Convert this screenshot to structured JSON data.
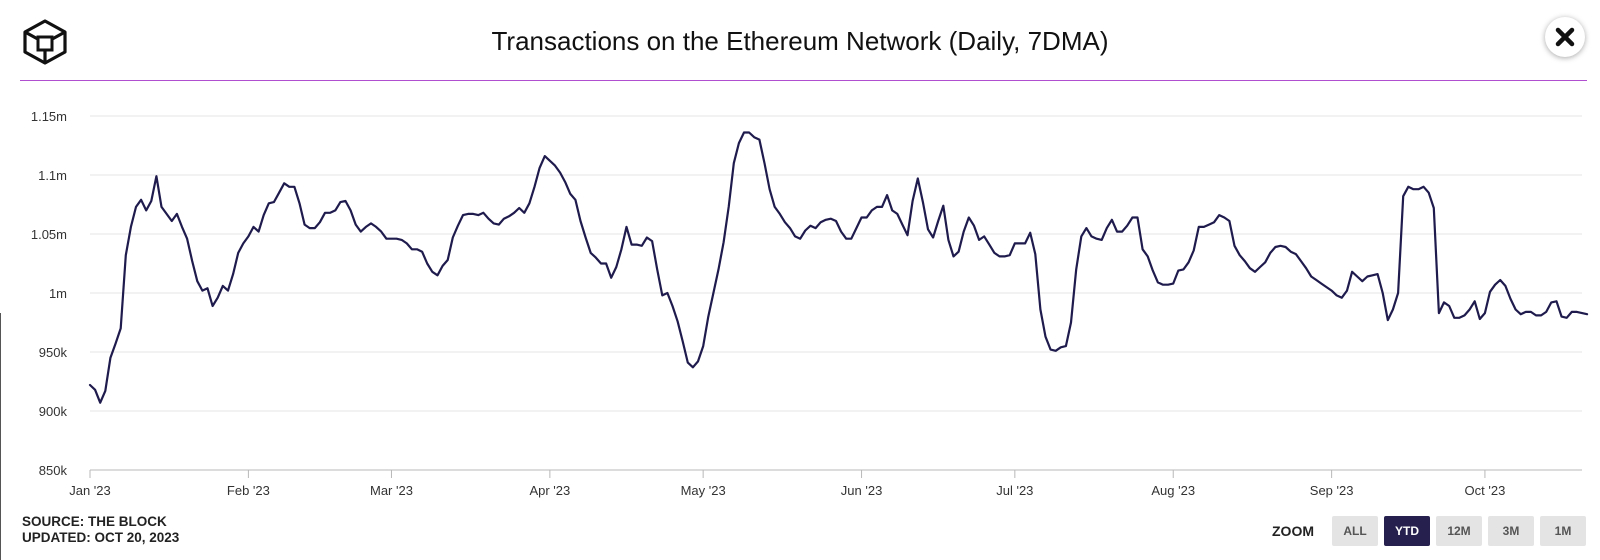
{
  "header": {
    "title": "Transactions on the Ethereum Network (Daily, 7DMA)"
  },
  "footer": {
    "source": "SOURCE: THE BLOCK",
    "updated": "UPDATED: OCT 20, 2023"
  },
  "zoom": {
    "label": "ZOOM",
    "options": [
      "ALL",
      "YTD",
      "12M",
      "3M",
      "1M"
    ],
    "selected": "YTD"
  },
  "colors": {
    "line": "#1f1b4d",
    "divider": "#b14fd1",
    "grid": "#e6e6e6",
    "active_zoom": "#25204e"
  },
  "chart_data": {
    "type": "line",
    "title": "Transactions on the Ethereum Network (Daily, 7DMA)",
    "xlabel": "",
    "ylabel": "",
    "x_range": [
      "2023-01-01",
      "2023-10-20"
    ],
    "ylim": [
      850000,
      1150000
    ],
    "y_ticks": [
      850000,
      900000,
      950000,
      1000000,
      1050000,
      1100000,
      1150000
    ],
    "y_tick_labels": [
      "850k",
      "900k",
      "950k",
      "1m",
      "1.05m",
      "1.1m",
      "1.15m"
    ],
    "x_ticks": [
      "2023-01-01",
      "2023-02-01",
      "2023-03-01",
      "2023-04-01",
      "2023-05-01",
      "2023-06-01",
      "2023-07-01",
      "2023-08-01",
      "2023-09-01",
      "2023-10-01"
    ],
    "x_tick_labels": [
      "Jan '23",
      "Feb '23",
      "Mar '23",
      "Apr '23",
      "May '23",
      "Jun '23",
      "Jul '23",
      "Aug '23",
      "Sep '23",
      "Oct '23"
    ],
    "grid": true,
    "series": [
      {
        "name": "Transactions (7DMA)",
        "start_date": "2023-01-01",
        "step": "1 day",
        "values": [
          922000,
          918000,
          907000,
          917000,
          945000,
          957000,
          970000,
          1032000,
          1056000,
          1073000,
          1079000,
          1070000,
          1078000,
          1099000,
          1073000,
          1067000,
          1061000,
          1067000,
          1056000,
          1046000,
          1027000,
          1010000,
          1002000,
          1004000,
          989000,
          996000,
          1006000,
          1002000,
          1016000,
          1034000,
          1042000,
          1048000,
          1056000,
          1052000,
          1066000,
          1076000,
          1077000,
          1085000,
          1093000,
          1090000,
          1090000,
          1076000,
          1058000,
          1055000,
          1055000,
          1060000,
          1068000,
          1068000,
          1070000,
          1077000,
          1078000,
          1070000,
          1058000,
          1052000,
          1056000,
          1059000,
          1056000,
          1052000,
          1046000,
          1046000,
          1046000,
          1045000,
          1042000,
          1037000,
          1037000,
          1035000,
          1025000,
          1018000,
          1015000,
          1023000,
          1028000,
          1047000,
          1057000,
          1066000,
          1067000,
          1067000,
          1066000,
          1068000,
          1063000,
          1059000,
          1058000,
          1063000,
          1065000,
          1068000,
          1072000,
          1068000,
          1076000,
          1090000,
          1106000,
          1116000,
          1112000,
          1108000,
          1102000,
          1094000,
          1084000,
          1079000,
          1061000,
          1047000,
          1034000,
          1030000,
          1025000,
          1025000,
          1013000,
          1022000,
          1037000,
          1056000,
          1041000,
          1041000,
          1040000,
          1047000,
          1044000,
          1020000,
          998000,
          1000000,
          989000,
          976000,
          959000,
          941000,
          937000,
          942000,
          955000,
          980000,
          1000000,
          1020000,
          1043000,
          1073000,
          1110000,
          1127000,
          1136000,
          1136000,
          1132000,
          1130000,
          1110000,
          1088000,
          1073000,
          1067000,
          1060000,
          1055000,
          1048000,
          1046000,
          1053000,
          1057000,
          1055000,
          1060000,
          1062000,
          1063000,
          1061000,
          1052000,
          1046000,
          1046000,
          1055000,
          1064000,
          1064000,
          1070000,
          1073000,
          1073000,
          1083000,
          1070000,
          1067000,
          1058000,
          1049000,
          1078000,
          1097000,
          1077000,
          1054000,
          1047000,
          1061000,
          1074000,
          1045000,
          1031000,
          1035000,
          1052000,
          1064000,
          1057000,
          1045000,
          1048000,
          1041000,
          1034000,
          1031000,
          1031000,
          1032000,
          1042000,
          1042000,
          1042000,
          1051000,
          1033000,
          986000,
          963000,
          952000,
          951000,
          954000,
          955000,
          975000,
          1020000,
          1048000,
          1055000,
          1048000,
          1046000,
          1045000,
          1055000,
          1062000,
          1052000,
          1052000,
          1057000,
          1064000,
          1064000,
          1037000,
          1031000,
          1019000,
          1009000,
          1007000,
          1007000,
          1008000,
          1019000,
          1020000,
          1026000,
          1036000,
          1056000,
          1056000,
          1058000,
          1060000,
          1066000,
          1064000,
          1061000,
          1040000,
          1032000,
          1027000,
          1021000,
          1018000,
          1022000,
          1026000,
          1034000,
          1039000,
          1040000,
          1039000,
          1035000,
          1033000,
          1027000,
          1021000,
          1014000,
          1011000,
          1008000,
          1005000,
          1002000,
          998000,
          996000,
          1002000,
          1018000,
          1014000,
          1010000,
          1014000,
          1015000,
          1016000,
          1000000,
          977000,
          986000,
          1000000,
          1082000,
          1090000,
          1088000,
          1088000,
          1090000,
          1085000,
          1072000,
          983000,
          992000,
          989000,
          979000,
          979000,
          981000,
          986000,
          993000,
          978000,
          983000,
          1001000,
          1007000,
          1011000,
          1006000,
          995000,
          986000,
          982000,
          984000,
          984000,
          981000,
          981000,
          984000,
          992000,
          993000,
          980000,
          979000,
          984000,
          984000,
          983000,
          982000
        ]
      }
    ]
  }
}
